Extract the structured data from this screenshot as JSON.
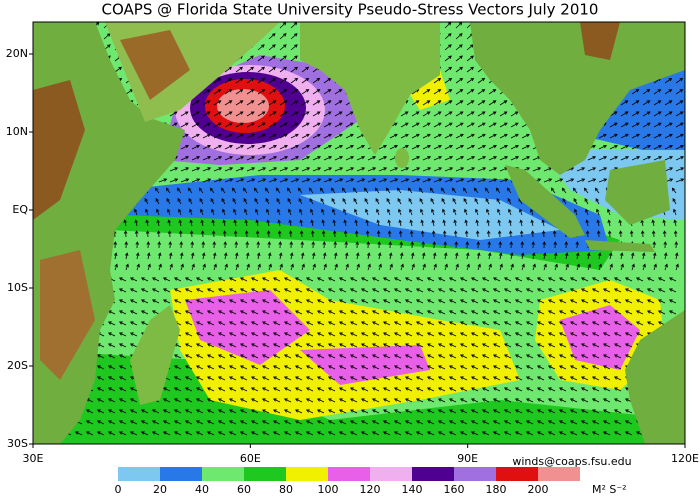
{
  "title": "COAPS @ Florida State University Pseudo-Stress Vectors July 2010",
  "map": {
    "xticks": [
      {
        "value": 30,
        "label": "30E"
      },
      {
        "value": 60,
        "label": "60E"
      },
      {
        "value": 90,
        "label": "90E"
      },
      {
        "value": 120,
        "label": "120E"
      }
    ],
    "yticks": [
      {
        "value": -30,
        "label": "30S"
      },
      {
        "value": -20,
        "label": "20S"
      },
      {
        "value": -10,
        "label": "10S"
      },
      {
        "value": 0,
        "label": "EQ"
      },
      {
        "value": 10,
        "label": "10N"
      },
      {
        "value": 20,
        "label": "20N"
      }
    ]
  },
  "credit": "winds@coaps.fsu.edu",
  "colorbar": {
    "levels": [
      0,
      20,
      40,
      60,
      80,
      100,
      120,
      140,
      160,
      180,
      200
    ],
    "colors": [
      "#7cc8f0",
      "#2878e8",
      "#6ee86e",
      "#1ec81e",
      "#f0f000",
      "#e860e8",
      "#f0b0f0",
      "#500090",
      "#a070e0",
      "#e01010",
      "#f09090"
    ],
    "unit": "M² S⁻²"
  }
}
